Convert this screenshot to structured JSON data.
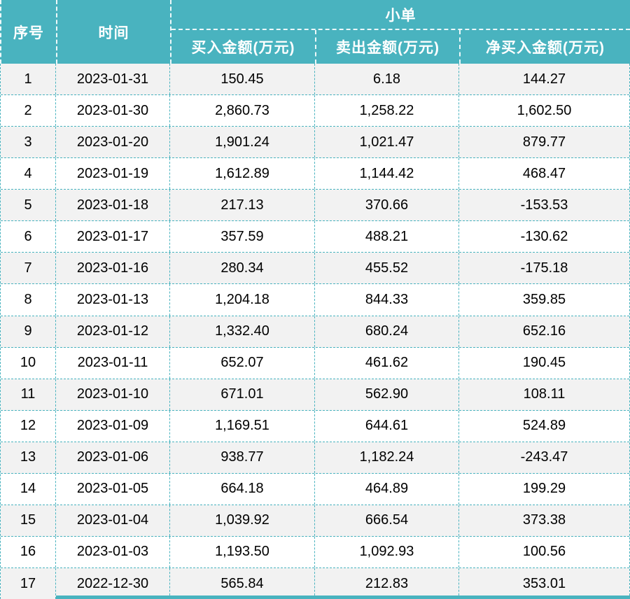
{
  "colors": {
    "accent": "#49B3BF",
    "stripe": "#F2F2F2",
    "header_text": "#FFFFFF",
    "body_text": "#000000"
  },
  "table": {
    "header": {
      "col_index": "序号",
      "col_time": "时间",
      "group": "小单",
      "col_buy": "买入金额(万元)",
      "col_sell": "卖出金额(万元)",
      "col_net": "净买入金额(万元)"
    },
    "rows": [
      {
        "index": "1",
        "date": "2023-01-31",
        "buy": "150.45",
        "sell": "6.18",
        "net": "144.27"
      },
      {
        "index": "2",
        "date": "2023-01-30",
        "buy": "2,860.73",
        "sell": "1,258.22",
        "net": "1,602.50"
      },
      {
        "index": "3",
        "date": "2023-01-20",
        "buy": "1,901.24",
        "sell": "1,021.47",
        "net": "879.77"
      },
      {
        "index": "4",
        "date": "2023-01-19",
        "buy": "1,612.89",
        "sell": "1,144.42",
        "net": "468.47"
      },
      {
        "index": "5",
        "date": "2023-01-18",
        "buy": "217.13",
        "sell": "370.66",
        "net": "-153.53"
      },
      {
        "index": "6",
        "date": "2023-01-17",
        "buy": "357.59",
        "sell": "488.21",
        "net": "-130.62"
      },
      {
        "index": "7",
        "date": "2023-01-16",
        "buy": "280.34",
        "sell": "455.52",
        "net": "-175.18"
      },
      {
        "index": "8",
        "date": "2023-01-13",
        "buy": "1,204.18",
        "sell": "844.33",
        "net": "359.85"
      },
      {
        "index": "9",
        "date": "2023-01-12",
        "buy": "1,332.40",
        "sell": "680.24",
        "net": "652.16"
      },
      {
        "index": "10",
        "date": "2023-01-11",
        "buy": "652.07",
        "sell": "461.62",
        "net": "190.45"
      },
      {
        "index": "11",
        "date": "2023-01-10",
        "buy": "671.01",
        "sell": "562.90",
        "net": "108.11"
      },
      {
        "index": "12",
        "date": "2023-01-09",
        "buy": "1,169.51",
        "sell": "644.61",
        "net": "524.89"
      },
      {
        "index": "13",
        "date": "2023-01-06",
        "buy": "938.77",
        "sell": "1,182.24",
        "net": "-243.47"
      },
      {
        "index": "14",
        "date": "2023-01-05",
        "buy": "664.18",
        "sell": "464.89",
        "net": "199.29"
      },
      {
        "index": "15",
        "date": "2023-01-04",
        "buy": "1,039.92",
        "sell": "666.54",
        "net": "373.38"
      },
      {
        "index": "16",
        "date": "2023-01-03",
        "buy": "1,193.50",
        "sell": "1,092.93",
        "net": "100.56"
      },
      {
        "index": "17",
        "date": "2022-12-30",
        "buy": "565.84",
        "sell": "212.83",
        "net": "353.01"
      }
    ]
  }
}
